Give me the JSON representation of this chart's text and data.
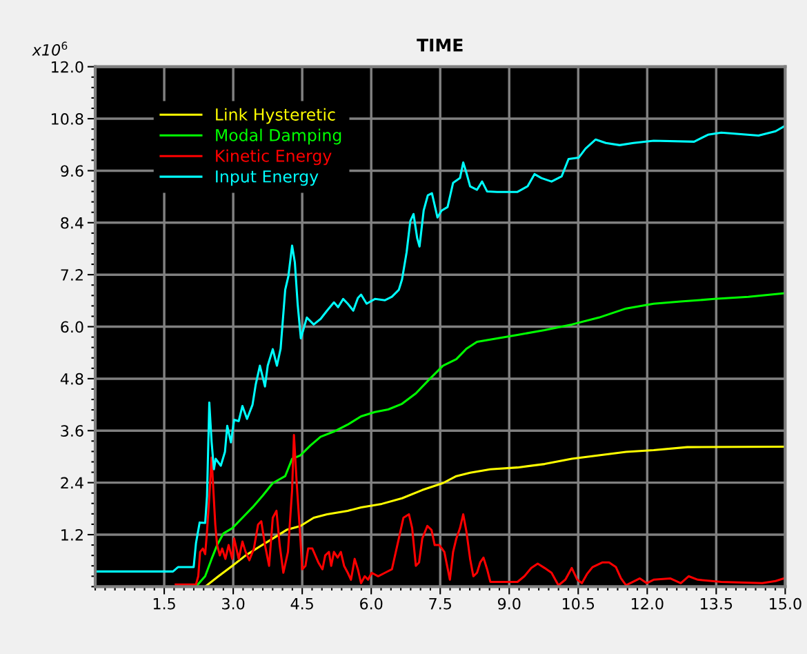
{
  "chart_data": {
    "type": "line",
    "title": "TIME",
    "annotations": [
      "x10$^{6}$"
    ],
    "xlim": [
      0,
      15
    ],
    "ylim": [
      0,
      12
    ],
    "xticks": [
      1.5,
      {
        "value": 3,
        "label": "3.0"
      },
      4.5,
      {
        "value": 6,
        "label": "6.0"
      },
      7.5,
      {
        "value": 9,
        "label": "9.0"
      },
      10.5,
      {
        "value": 12,
        "label": "12.0"
      },
      13.5,
      {
        "value": 15,
        "label": "15.0"
      }
    ],
    "yticks": [
      1.2,
      2.4,
      3.6,
      4.8,
      {
        "value": 6,
        "label": "6.0"
      },
      7.2,
      8.4,
      9.6,
      10.8,
      {
        "value": 12,
        "label": "12.0"
      }
    ],
    "grid": true,
    "legend": "top left",
    "marker": "none",
    "line_style": "solid",
    "series": [
      {
        "name": "Link Hysteretic",
        "color": "#ffff00",
        "x": [
          2.39,
          2.68,
          2.98,
          3.27,
          3.57,
          3.86,
          4.16,
          4.46,
          4.75,
          5.04,
          5.49,
          5.78,
          6.23,
          6.67,
          7.11,
          7.56,
          7.85,
          8.15,
          8.59,
          9.18,
          9.77,
          10.36,
          10.95,
          11.54,
          12.14,
          12.87,
          14.97
        ],
        "values": [
          0,
          0.24,
          0.48,
          0.72,
          0.92,
          1.11,
          1.31,
          1.4,
          1.59,
          1.67,
          1.75,
          1.83,
          1.91,
          2.04,
          2.23,
          2.39,
          2.55,
          2.63,
          2.71,
          2.75,
          2.83,
          2.95,
          3.03,
          3.11,
          3.15,
          3.22,
          3.23
        ]
      },
      {
        "name": "Modal Damping",
        "color": "#00ff00",
        "x": [
          2.19,
          2.39,
          2.53,
          2.65,
          2.79,
          2.98,
          3.2,
          3.42,
          3.64,
          3.86,
          4.13,
          4.28,
          4.46,
          4.68,
          4.9,
          5.19,
          5.49,
          5.78,
          6.08,
          6.37,
          6.67,
          6.97,
          7.26,
          7.56,
          7.85,
          8.07,
          8.3,
          8.74,
          9.18,
          9.77,
          10.36,
          10.95,
          11.54,
          12.14,
          12.73,
          13.46,
          14.2,
          14.97
        ],
        "values": [
          0,
          0.24,
          0.64,
          0.96,
          1.23,
          1.35,
          1.59,
          1.83,
          2.1,
          2.39,
          2.55,
          2.95,
          3.03,
          3.26,
          3.46,
          3.58,
          3.74,
          3.93,
          4.03,
          4.09,
          4.22,
          4.46,
          4.78,
          5.1,
          5.25,
          5.49,
          5.65,
          5.73,
          5.81,
          5.92,
          6.05,
          6.21,
          6.42,
          6.53,
          6.58,
          6.64,
          6.69,
          6.77
        ]
      },
      {
        "name": "Kinetic Energy",
        "color": "#ff0000",
        "x": [
          1.75,
          2.19,
          2.24,
          2.28,
          2.34,
          2.39,
          2.43,
          2.48,
          2.53,
          2.56,
          2.61,
          2.65,
          2.71,
          2.76,
          2.83,
          2.9,
          2.98,
          3.02,
          3.12,
          3.2,
          3.27,
          3.35,
          3.45,
          3.54,
          3.61,
          3.69,
          3.78,
          3.86,
          3.94,
          4.01,
          4.09,
          4.19,
          4.28,
          4.32,
          4.38,
          4.46,
          4.5,
          4.57,
          4.63,
          4.72,
          4.85,
          4.94,
          5.0,
          5.08,
          5.13,
          5.19,
          5.27,
          5.34,
          5.41,
          5.49,
          5.56,
          5.64,
          5.71,
          5.78,
          5.86,
          5.93,
          6.01,
          6.15,
          6.3,
          6.45,
          6.6,
          6.7,
          6.82,
          6.89,
          6.97,
          7.04,
          7.11,
          7.22,
          7.31,
          7.38,
          7.48,
          7.59,
          7.71,
          7.78,
          7.85,
          7.93,
          8.0,
          8.07,
          8.15,
          8.22,
          8.3,
          8.37,
          8.44,
          8.52,
          8.59,
          9.18,
          9.33,
          9.48,
          9.62,
          9.77,
          9.92,
          10.07,
          10.22,
          10.36,
          10.48,
          10.58,
          10.69,
          10.81,
          11.03,
          11.17,
          11.32,
          11.43,
          11.54,
          11.69,
          11.84,
          11.99,
          12.14,
          12.5,
          12.73,
          12.9,
          13.1,
          13.61,
          14.5,
          14.79,
          14.97
        ],
        "values": [
          0.05,
          0.05,
          0.24,
          0.8,
          0.88,
          0.75,
          1.27,
          2.07,
          2.98,
          2.39,
          1.43,
          0.96,
          0.72,
          0.88,
          0.64,
          0.96,
          0.64,
          1.11,
          0.64,
          1.04,
          0.8,
          0.61,
          0.88,
          1.43,
          1.51,
          0.96,
          0.48,
          1.59,
          1.75,
          0.96,
          0.32,
          0.8,
          2.23,
          3.5,
          2.39,
          1.11,
          0.4,
          0.48,
          0.88,
          0.88,
          0.56,
          0.4,
          0.72,
          0.8,
          0.48,
          0.8,
          0.67,
          0.8,
          0.48,
          0.32,
          0.16,
          0.64,
          0.4,
          0.08,
          0.24,
          0.16,
          0.32,
          0.24,
          0.32,
          0.4,
          1.11,
          1.59,
          1.67,
          1.35,
          0.48,
          0.56,
          1.11,
          1.4,
          1.31,
          0.96,
          0.96,
          0.8,
          0.16,
          0.8,
          1.11,
          1.35,
          1.67,
          1.27,
          0.64,
          0.24,
          0.32,
          0.56,
          0.67,
          0.4,
          0.11,
          0.11,
          0.24,
          0.43,
          0.53,
          0.43,
          0.32,
          0.03,
          0.16,
          0.43,
          0.16,
          0.08,
          0.29,
          0.45,
          0.56,
          0.56,
          0.45,
          0.19,
          0.03,
          0.11,
          0.19,
          0.08,
          0.16,
          0.19,
          0.08,
          0.24,
          0.16,
          0.11,
          0.08,
          0.13,
          0.19
        ]
      },
      {
        "name": "Input Energy",
        "color": "#00ffff",
        "x": [
          0,
          1.69,
          1.8,
          2.14,
          2.19,
          2.27,
          2.39,
          2.43,
          2.48,
          2.53,
          2.58,
          2.62,
          2.73,
          2.82,
          2.87,
          2.95,
          3.02,
          3.12,
          3.2,
          3.3,
          3.42,
          3.49,
          3.58,
          3.69,
          3.75,
          3.86,
          3.95,
          4.03,
          4.13,
          4.2,
          4.28,
          4.34,
          4.4,
          4.47,
          4.6,
          4.75,
          4.9,
          5.04,
          5.19,
          5.28,
          5.39,
          5.49,
          5.61,
          5.71,
          5.78,
          5.9,
          6.08,
          6.3,
          6.45,
          6.6,
          6.67,
          6.77,
          6.85,
          6.92,
          7.0,
          7.05,
          7.14,
          7.23,
          7.32,
          7.44,
          7.53,
          7.66,
          7.78,
          7.93,
          8.0,
          8.07,
          8.15,
          8.3,
          8.41,
          8.52,
          8.74,
          9.18,
          9.4,
          9.55,
          9.7,
          9.92,
          10.14,
          10.29,
          10.51,
          10.66,
          10.88,
          11.1,
          11.4,
          11.7,
          12.14,
          13.02,
          13.32,
          13.61,
          14.42,
          14.79,
          14.97
        ],
        "values": [
          0.35,
          0.35,
          0.45,
          0.45,
          1.0,
          1.48,
          1.47,
          2.09,
          4.25,
          3.34,
          2.71,
          2.95,
          2.79,
          3.11,
          3.71,
          3.33,
          3.85,
          3.82,
          4.17,
          3.87,
          4.2,
          4.67,
          5.1,
          4.62,
          5.1,
          5.48,
          5.1,
          5.49,
          6.85,
          7.17,
          7.87,
          7.48,
          6.53,
          5.73,
          6.21,
          6.05,
          6.18,
          6.37,
          6.56,
          6.45,
          6.64,
          6.53,
          6.37,
          6.66,
          6.74,
          6.53,
          6.64,
          6.61,
          6.69,
          6.85,
          7.09,
          7.72,
          8.44,
          8.6,
          8.04,
          7.85,
          8.68,
          9.03,
          9.08,
          8.52,
          8.68,
          8.76,
          9.32,
          9.43,
          9.79,
          9.55,
          9.24,
          9.16,
          9.35,
          9.12,
          9.11,
          9.11,
          9.24,
          9.52,
          9.43,
          9.35,
          9.47,
          9.87,
          9.9,
          10.11,
          10.32,
          10.24,
          10.19,
          10.24,
          10.29,
          10.27,
          10.43,
          10.48,
          10.41,
          10.51,
          10.62
        ]
      }
    ]
  }
}
